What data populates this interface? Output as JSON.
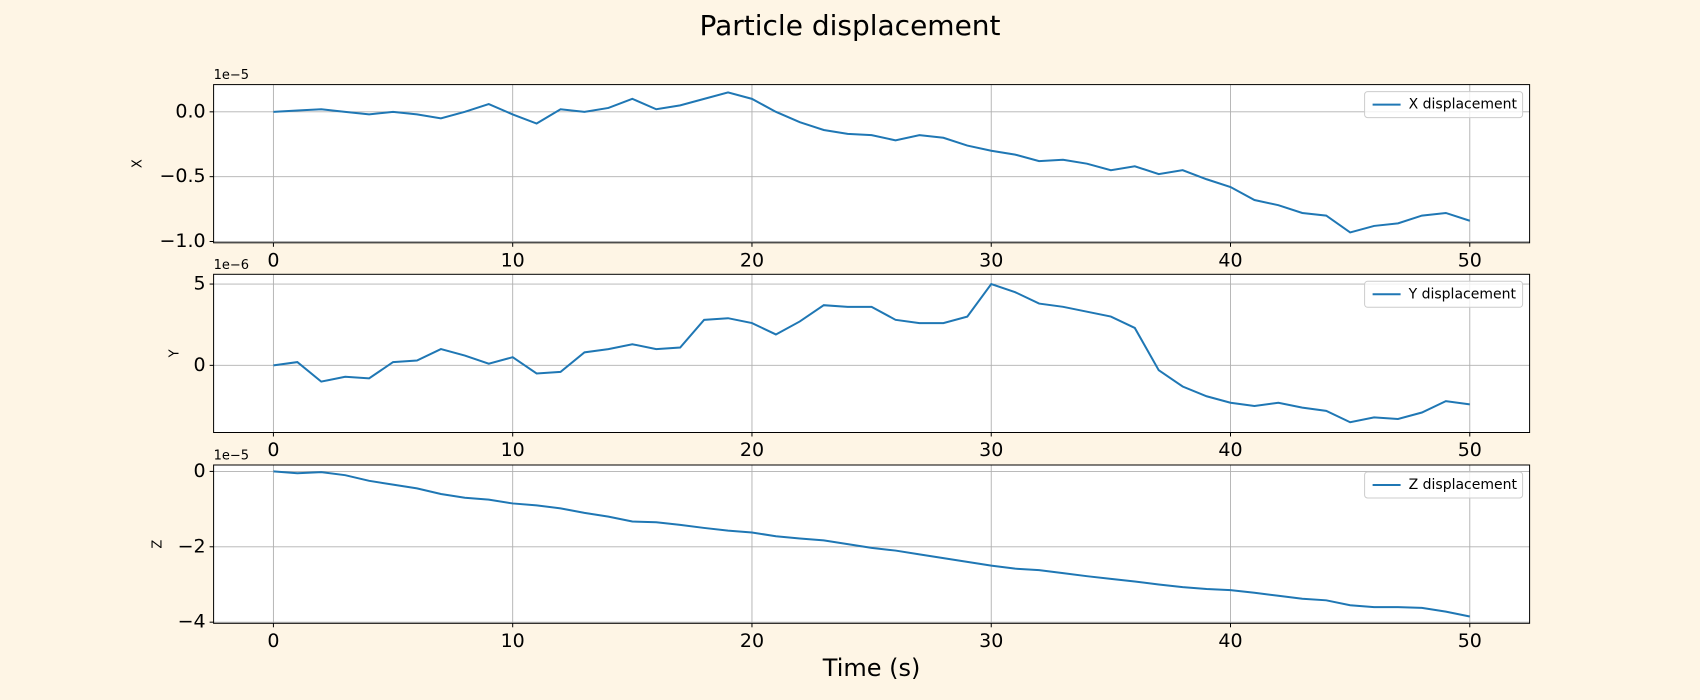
{
  "title": "Particle displacement",
  "chart_data": [
    {
      "type": "line",
      "ylabel": "X",
      "offset_text": "1e−5",
      "x": [
        0,
        1,
        2,
        3,
        4,
        5,
        6,
        7,
        8,
        9,
        10,
        11,
        12,
        13,
        14,
        15,
        16,
        17,
        18,
        19,
        20,
        21,
        22,
        23,
        24,
        25,
        26,
        27,
        28,
        29,
        30,
        31,
        32,
        33,
        34,
        35,
        36,
        37,
        38,
        39,
        40,
        41,
        42,
        43,
        44,
        45,
        46,
        47,
        48,
        49,
        50
      ],
      "series": [
        {
          "name": "X displacement",
          "color": "#1f77b4",
          "values": [
            0,
            0.01,
            0.02,
            0,
            -0.02,
            0,
            -0.02,
            -0.05,
            0,
            0.06,
            -0.02,
            -0.09,
            0.02,
            0,
            0.03,
            0.1,
            0.02,
            0.05,
            0.1,
            0.15,
            0.1,
            0,
            -0.08,
            -0.14,
            -0.17,
            -0.18,
            -0.22,
            -0.18,
            -0.2,
            -0.26,
            -0.3,
            -0.33,
            -0.38,
            -0.37,
            -0.4,
            -0.45,
            -0.42,
            -0.48,
            -0.45,
            -0.52,
            -0.58,
            -0.68,
            -0.72,
            -0.78,
            -0.8,
            -0.93,
            -0.88,
            -0.86,
            -0.8,
            -0.78,
            -0.84
          ]
        }
      ],
      "xlim": [
        -2.5,
        52.5
      ],
      "xticks": [
        0,
        10,
        20,
        30,
        40,
        50
      ],
      "ylim": [
        -1.01,
        0.21
      ],
      "yticks": [
        {
          "value": 0,
          "label": "0.0"
        },
        {
          "value": -0.5,
          "label": "−0.5"
        },
        {
          "value": -1,
          "label": "−1.0"
        }
      ],
      "grid": true,
      "legend": "upper right"
    },
    {
      "type": "line",
      "ylabel": "Y",
      "offset_text": "1e−6",
      "x": [
        0,
        1,
        2,
        3,
        4,
        5,
        6,
        7,
        8,
        9,
        10,
        11,
        12,
        13,
        14,
        15,
        16,
        17,
        18,
        19,
        20,
        21,
        22,
        23,
        24,
        25,
        26,
        27,
        28,
        29,
        30,
        31,
        32,
        33,
        34,
        35,
        36,
        37,
        38,
        39,
        40,
        41,
        42,
        43,
        44,
        45,
        46,
        47,
        48,
        49,
        50
      ],
      "series": [
        {
          "name": "Y displacement",
          "color": "#1f77b4",
          "values": [
            0,
            0.2,
            -1.0,
            -0.7,
            -0.8,
            0.2,
            0.3,
            1.0,
            0.6,
            0.1,
            0.5,
            -0.5,
            -0.4,
            0.8,
            1.0,
            1.3,
            1.0,
            1.1,
            2.8,
            2.9,
            2.6,
            1.9,
            2.7,
            3.7,
            3.6,
            3.6,
            2.8,
            2.6,
            2.6,
            3.0,
            5.0,
            4.5,
            3.8,
            3.6,
            3.3,
            3.0,
            2.3,
            -0.3,
            -1.3,
            -1.9,
            -2.3,
            -2.5,
            -2.3,
            -2.6,
            -2.8,
            -3.5,
            -3.2,
            -3.3,
            -2.9,
            -2.2,
            -2.4
          ]
        }
      ],
      "xlim": [
        -2.5,
        52.5
      ],
      "xticks": [
        0,
        10,
        20,
        30,
        40,
        50
      ],
      "ylim": [
        -4.13,
        5.6
      ],
      "yticks": [
        0,
        5
      ],
      "grid": true,
      "legend": "upper right"
    },
    {
      "type": "line",
      "ylabel": "Z",
      "offset_text": "1e−5",
      "xlabel": "Time (s)",
      "x": [
        0,
        1,
        2,
        3,
        4,
        5,
        6,
        7,
        8,
        9,
        10,
        11,
        12,
        13,
        14,
        15,
        16,
        17,
        18,
        19,
        20,
        21,
        22,
        23,
        24,
        25,
        26,
        27,
        28,
        29,
        30,
        31,
        32,
        33,
        34,
        35,
        36,
        37,
        38,
        39,
        40,
        41,
        42,
        43,
        44,
        45,
        46,
        47,
        48,
        49,
        50
      ],
      "series": [
        {
          "name": "Z displacement",
          "color": "#1f77b4",
          "values": [
            0,
            -0.05,
            -0.02,
            -0.1,
            -0.25,
            -0.35,
            -0.45,
            -0.6,
            -0.7,
            -0.75,
            -0.85,
            -0.9,
            -0.98,
            -1.1,
            -1.2,
            -1.33,
            -1.35,
            -1.42,
            -1.5,
            -1.57,
            -1.62,
            -1.72,
            -1.78,
            -1.83,
            -1.93,
            -2.03,
            -2.1,
            -2.2,
            -2.3,
            -2.4,
            -2.5,
            -2.58,
            -2.62,
            -2.7,
            -2.78,
            -2.85,
            -2.92,
            -3.0,
            -3.07,
            -3.12,
            -3.15,
            -3.22,
            -3.3,
            -3.38,
            -3.42,
            -3.55,
            -3.6,
            -3.6,
            -3.62,
            -3.72,
            -3.85
          ]
        }
      ],
      "xlim": [
        -2.5,
        52.5
      ],
      "xticks": [
        0,
        10,
        20,
        30,
        40,
        50
      ],
      "ylim": [
        -4.03,
        0.17
      ],
      "yticks": [
        0,
        {
          "value": -2,
          "label": "−2"
        },
        {
          "value": -4,
          "label": "−4"
        }
      ],
      "grid": true,
      "legend": "upper right"
    }
  ]
}
